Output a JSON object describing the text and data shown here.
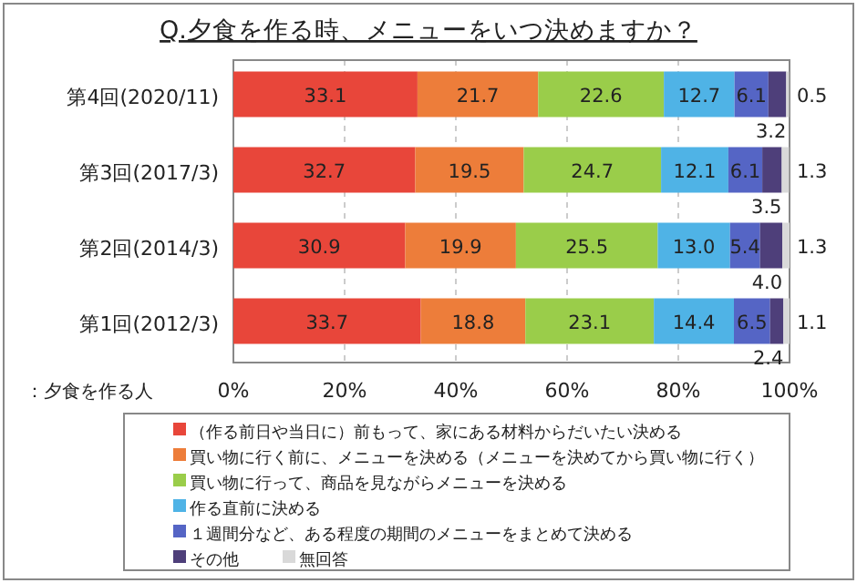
{
  "chart_data": {
    "type": "bar",
    "orientation": "horizontal",
    "stacked": true,
    "title": "Q.夕食を作る時、メニューをいつ決めますか？",
    "categories": [
      "第4回(2020/11)",
      "第3回(2017/3)",
      "第2回(2014/3)",
      "第1回(2012/3)"
    ],
    "series": [
      {
        "name": "（作る前日や当日に）前もって、家にある材料からだいたい決める",
        "color": "#e8463a",
        "values": [
          33.1,
          32.7,
          30.9,
          33.7
        ]
      },
      {
        "name": "買い物に行く前に、メニューを決める（メニューを決めてから買い物に行く）",
        "color": "#ed7d3a",
        "values": [
          21.7,
          19.5,
          19.9,
          18.8
        ]
      },
      {
        "name": "買い物に行って、商品を見ながらメニューを決める",
        "color": "#9acd4a",
        "values": [
          22.6,
          24.7,
          25.5,
          23.1
        ]
      },
      {
        "name": "作る直前に決める",
        "color": "#4fb3e6",
        "values": [
          12.7,
          12.1,
          13.0,
          14.4
        ],
        "value_labels": [
          "12.7",
          "12.1",
          "13.0",
          "14.4"
        ]
      },
      {
        "name": "１週間分など、ある程度の期間のメニューをまとめて決める",
        "color": "#5565c5",
        "values": [
          6.1,
          6.1,
          5.4,
          6.5
        ]
      },
      {
        "name": "その他",
        "color": "#4e3f7a",
        "values": [
          3.2,
          3.5,
          4.0,
          2.4
        ],
        "value_labels": [
          "3.2",
          "3.5",
          "4.0",
          "2.4"
        ]
      },
      {
        "name": "無回答",
        "color": "#d9d9d9",
        "values": [
          0.5,
          1.3,
          1.3,
          1.1
        ]
      }
    ],
    "xlim": [
      0,
      100
    ],
    "xticks": [
      {
        "value": 0,
        "label": "0%"
      },
      {
        "value": 20,
        "label": "20%"
      },
      {
        "value": 40,
        "label": "40%"
      },
      {
        "value": 60,
        "label": "60%"
      },
      {
        "value": 80,
        "label": "80%"
      },
      {
        "value": 100,
        "label": "100%"
      }
    ],
    "grid": "x",
    "data_labels": true,
    "legend": "bottom",
    "annotations": [
      "：夕食を作る人"
    ]
  }
}
